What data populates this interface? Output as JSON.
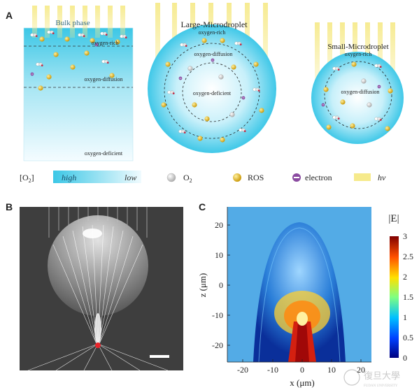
{
  "panel_a": {
    "letter": "A",
    "bulk": {
      "title": "Bulk phase",
      "zone1": "oxygen-rich",
      "zone2": "oxygen-diffusion",
      "zone3": "oxygen-deficient"
    },
    "large": {
      "title": "Large-Microdroplet",
      "zone1": "oxygen-rich",
      "zone2": "oxygen-diffusion",
      "zone3": "oxygen-deficient"
    },
    "small": {
      "title": "Small-Microdroplet",
      "zone1": "oxygen-rich",
      "zone2": "oxygen-diffusion"
    },
    "legend": {
      "o2_bracket": "[O",
      "o2_sub": "2",
      "o2_close": "]",
      "high": "high",
      "low": "low",
      "o2_label": "O",
      "o2_label_sub": "2",
      "ros": "ROS",
      "electron": "electron",
      "hv": "hv"
    },
    "colors": {
      "cyan": "#55cde8",
      "ros": "#e0b21a",
      "beam": "#f6ea8c",
      "electron": "#8a4aa0"
    }
  },
  "panel_b": {
    "letter": "B"
  },
  "panel_c": {
    "letter": "C",
    "colorbar_label": "|E|",
    "colorbar_ticks": [
      "3",
      "2.5",
      "2",
      "1.5",
      "1",
      "0.5",
      "0"
    ],
    "x_label": "x (μm)",
    "y_label": "z (μm)",
    "x_ticks": [
      "-20",
      "-10",
      "0",
      "10",
      "20"
    ],
    "y_ticks": [
      "20",
      "10",
      "0",
      "-10",
      "-20"
    ]
  },
  "watermark": {
    "text": "復旦大學",
    "sub": "FUDAN UNIVERSITY"
  }
}
